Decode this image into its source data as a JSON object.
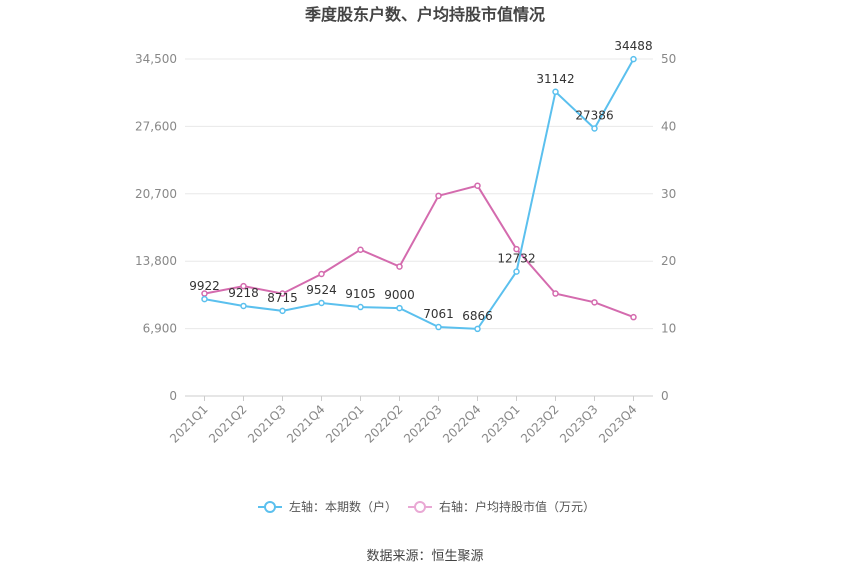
{
  "chart_data": {
    "type": "line",
    "title": "季度股东户数、户均持股市值情况",
    "categories": [
      "2021Q1",
      "2021Q2",
      "2021Q3",
      "2021Q4",
      "2022Q1",
      "2022Q2",
      "2022Q3",
      "2022Q4",
      "2023Q1",
      "2023Q2",
      "2023Q3",
      "2023Q4"
    ],
    "left_axis": {
      "ticks": [
        "0",
        "6,900",
        "13,800",
        "20,700",
        "27,600",
        "34,500"
      ],
      "ylim": [
        0,
        34500
      ]
    },
    "right_axis": {
      "ticks": [
        "0",
        "10",
        "20",
        "30",
        "40",
        "50"
      ],
      "ylim": [
        0,
        50
      ]
    },
    "series": [
      {
        "name": "左轴：本期数（户）",
        "axis": "left",
        "color": "#5bc0ee",
        "values": [
          9922,
          9218,
          8715,
          9524,
          9105,
          9000,
          7061,
          6866,
          12732,
          31142,
          27386,
          34488
        ],
        "labels": [
          "9922",
          "9218",
          "8715",
          "9524",
          "9105",
          "9000",
          "7061",
          "6866",
          "12732",
          "31142",
          "27386",
          "34488"
        ]
      },
      {
        "name": "右轴：户均持股市值（万元）",
        "axis": "right",
        "color": "#d46bae",
        "values": [
          15.2,
          16.3,
          15.2,
          18.1,
          21.7,
          19.2,
          29.7,
          31.2,
          21.8,
          15.2,
          13.9,
          11.7
        ]
      }
    ],
    "grid": true,
    "legend_position": "bottom"
  },
  "source": "数据来源：恒生聚源"
}
